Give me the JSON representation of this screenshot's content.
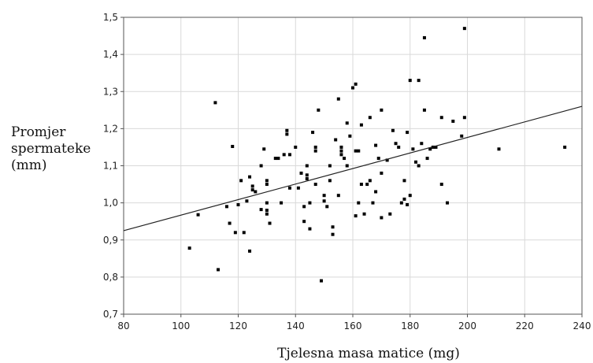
{
  "chart_data": {
    "type": "scatter",
    "xlabel": "Tjelesna masa matice (mg)",
    "ylabel_lines": [
      "Promjer",
      "spermateke",
      "(mm)"
    ],
    "xlim": [
      80,
      240
    ],
    "ylim": [
      0.7,
      1.5
    ],
    "x_ticks": [
      "80",
      "100",
      "120",
      "140",
      "160",
      "180",
      "200",
      "220",
      "240"
    ],
    "y_ticks": [
      "0,7",
      "0,8",
      "0,9",
      "1,0",
      "1,1",
      "1,2",
      "1,3",
      "1,4",
      "1,5"
    ],
    "grid": true,
    "colors": {
      "point": "#000000",
      "grid": "#d9d9d9",
      "axis": "#555555",
      "line": "#222222"
    },
    "trendline": {
      "x": [
        80,
        240
      ],
      "y": [
        0.925,
        1.26
      ]
    },
    "points": [
      [
        103,
        0.878
      ],
      [
        106,
        0.968
      ],
      [
        112,
        1.27
      ],
      [
        113,
        0.82
      ],
      [
        116,
        0.99
      ],
      [
        117,
        0.945
      ],
      [
        118,
        1.152
      ],
      [
        119,
        0.92
      ],
      [
        120,
        0.995
      ],
      [
        121,
        1.06
      ],
      [
        122,
        0.92
      ],
      [
        123,
        1.005
      ],
      [
        124,
        1.07
      ],
      [
        124,
        0.87
      ],
      [
        125,
        1.045
      ],
      [
        125,
        1.035
      ],
      [
        126,
        1.03
      ],
      [
        128,
        1.1
      ],
      [
        128,
        0.982
      ],
      [
        129,
        1.145
      ],
      [
        130,
        1.06
      ],
      [
        130,
        1.05
      ],
      [
        130,
        1.0
      ],
      [
        130,
        0.98
      ],
      [
        130,
        0.97
      ],
      [
        131,
        0.945
      ],
      [
        133,
        1.12
      ],
      [
        134,
        1.12
      ],
      [
        135,
        1.0
      ],
      [
        136,
        1.13
      ],
      [
        137,
        1.185
      ],
      [
        137,
        1.195
      ],
      [
        138,
        1.13
      ],
      [
        138,
        1.04
      ],
      [
        140,
        1.15
      ],
      [
        141,
        1.04
      ],
      [
        142,
        1.08
      ],
      [
        143,
        0.99
      ],
      [
        143,
        0.95
      ],
      [
        144,
        1.065
      ],
      [
        144,
        1.075
      ],
      [
        144,
        1.1
      ],
      [
        145,
        0.93
      ],
      [
        145,
        1.0
      ],
      [
        146,
        1.19
      ],
      [
        147,
        1.15
      ],
      [
        147,
        1.14
      ],
      [
        147,
        1.05
      ],
      [
        148,
        1.25
      ],
      [
        149,
        0.79
      ],
      [
        150,
        1.02
      ],
      [
        150,
        1.005
      ],
      [
        151,
        0.99
      ],
      [
        152,
        1.1
      ],
      [
        152,
        1.06
      ],
      [
        153,
        0.935
      ],
      [
        153,
        0.915
      ],
      [
        154,
        1.17
      ],
      [
        155,
        1.02
      ],
      [
        155,
        1.28
      ],
      [
        156,
        1.14
      ],
      [
        156,
        1.13
      ],
      [
        156,
        1.15
      ],
      [
        157,
        1.12
      ],
      [
        158,
        1.1
      ],
      [
        158,
        1.215
      ],
      [
        159,
        1.18
      ],
      [
        160,
        1.31
      ],
      [
        161,
        1.32
      ],
      [
        161,
        1.14
      ],
      [
        161,
        0.965
      ],
      [
        162,
        1.14
      ],
      [
        162,
        1.0
      ],
      [
        163,
        1.05
      ],
      [
        163,
        1.21
      ],
      [
        164,
        0.97
      ],
      [
        165,
        1.05
      ],
      [
        166,
        1.06
      ],
      [
        166,
        1.23
      ],
      [
        167,
        1.0
      ],
      [
        168,
        1.155
      ],
      [
        168,
        1.03
      ],
      [
        169,
        1.12
      ],
      [
        170,
        1.25
      ],
      [
        170,
        1.08
      ],
      [
        170,
        0.96
      ],
      [
        172,
        1.115
      ],
      [
        173,
        0.97
      ],
      [
        174,
        1.195
      ],
      [
        175,
        1.16
      ],
      [
        176,
        1.15
      ],
      [
        177,
        1.0
      ],
      [
        178,
        1.01
      ],
      [
        178,
        1.06
      ],
      [
        179,
        1.19
      ],
      [
        179,
        0.995
      ],
      [
        180,
        1.33
      ],
      [
        180,
        1.02
      ],
      [
        181,
        1.145
      ],
      [
        182,
        1.11
      ],
      [
        183,
        1.33
      ],
      [
        183,
        1.1
      ],
      [
        184,
        1.16
      ],
      [
        185,
        1.445
      ],
      [
        185,
        1.25
      ],
      [
        186,
        1.12
      ],
      [
        187,
        1.145
      ],
      [
        188,
        1.15
      ],
      [
        189,
        1.15
      ],
      [
        191,
        1.05
      ],
      [
        191,
        1.23
      ],
      [
        193,
        1.0
      ],
      [
        195,
        1.22
      ],
      [
        198,
        1.18
      ],
      [
        199,
        1.23
      ],
      [
        199,
        1.47
      ],
      [
        211,
        1.145
      ],
      [
        234,
        1.15
      ]
    ]
  }
}
